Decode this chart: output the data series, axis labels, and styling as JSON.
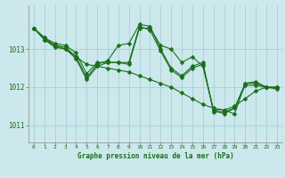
{
  "background_color": "#cce8ec",
  "grid_color": "#aad4d8",
  "line_color": "#1a6e1a",
  "marker_size": 2.5,
  "xlabel": "Graphe pression niveau de la mer (hPa)",
  "ylim": [
    1010.55,
    1014.15
  ],
  "xlim": [
    -0.5,
    23.5
  ],
  "yticks": [
    1011,
    1012,
    1013
  ],
  "xticks": [
    0,
    1,
    2,
    3,
    4,
    5,
    6,
    7,
    8,
    9,
    10,
    11,
    12,
    13,
    14,
    15,
    16,
    17,
    18,
    19,
    20,
    21,
    22,
    23
  ],
  "lines": [
    [
      1013.55,
      1013.3,
      1013.1,
      1013.05,
      1012.8,
      1012.6,
      1012.55,
      1012.5,
      1012.45,
      1012.4,
      1012.3,
      1012.2,
      1012.1,
      1012.0,
      1011.85,
      1011.7,
      1011.55,
      1011.45,
      1011.4,
      1011.5,
      1011.7,
      1011.9,
      1012.0,
      1012.0
    ],
    [
      1013.55,
      1013.3,
      1013.15,
      1013.1,
      1012.9,
      1012.35,
      1012.65,
      1012.65,
      1012.65,
      1012.6,
      1013.55,
      1013.55,
      1013.1,
      1013.0,
      1012.65,
      1012.8,
      1012.55,
      1011.4,
      1011.4,
      1011.3,
      1012.1,
      1012.15,
      1012.0,
      1012.0
    ],
    [
      1013.55,
      1013.25,
      1013.1,
      1013.0,
      1012.8,
      1012.25,
      1012.6,
      1012.7,
      1013.1,
      1013.15,
      1013.65,
      1013.6,
      1013.0,
      1012.5,
      1012.3,
      1012.55,
      1012.65,
      1011.35,
      1011.35,
      1011.45,
      1012.1,
      1012.1,
      1012.0,
      1012.0
    ],
    [
      1013.55,
      1013.25,
      1013.05,
      1013.0,
      1012.75,
      1012.2,
      1012.55,
      1012.65,
      1012.65,
      1012.65,
      1013.6,
      1013.5,
      1012.95,
      1012.45,
      1012.25,
      1012.5,
      1012.6,
      1011.4,
      1011.3,
      1011.45,
      1012.05,
      1012.05,
      1012.0,
      1011.95
    ]
  ]
}
